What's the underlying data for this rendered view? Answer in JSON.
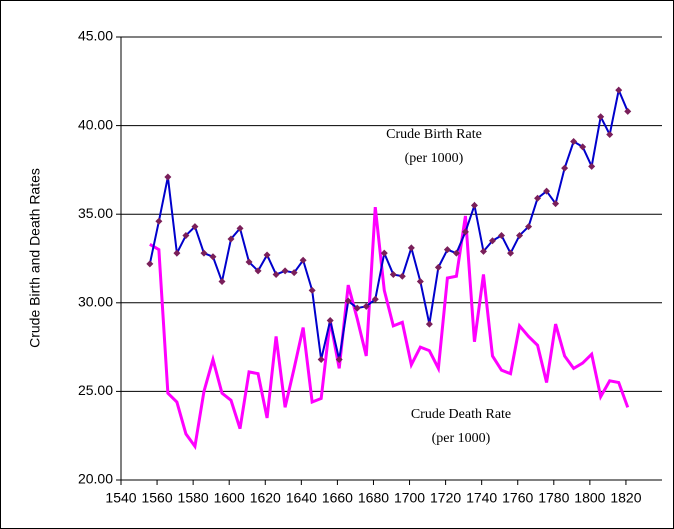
{
  "chart_data": {
    "type": "line",
    "y_label": "Crude Birth and Death Rates",
    "x": [
      1556,
      1561,
      1566,
      1571,
      1576,
      1581,
      1586,
      1591,
      1596,
      1601,
      1606,
      1611,
      1616,
      1621,
      1626,
      1631,
      1636,
      1641,
      1646,
      1651,
      1656,
      1661,
      1666,
      1671,
      1676,
      1681,
      1686,
      1691,
      1696,
      1701,
      1706,
      1711,
      1716,
      1721,
      1726,
      1731,
      1736,
      1741,
      1746,
      1751,
      1756,
      1761,
      1766,
      1771,
      1776,
      1781,
      1786,
      1791,
      1796,
      1801,
      1806,
      1811,
      1816,
      1821
    ],
    "series": [
      {
        "name": "Crude Birth Rate",
        "unit": "(per 1000)",
        "color": "#0000cc",
        "marker_color": "#7a1f5a",
        "markers": true,
        "values": [
          32.2,
          34.6,
          37.1,
          32.8,
          33.8,
          34.3,
          32.8,
          32.6,
          31.2,
          33.6,
          34.2,
          32.3,
          31.8,
          32.7,
          31.6,
          31.8,
          31.7,
          32.4,
          30.7,
          26.8,
          29.0,
          26.8,
          30.1,
          29.7,
          29.8,
          30.2,
          32.8,
          31.6,
          31.5,
          33.1,
          31.2,
          28.8,
          32.0,
          33.0,
          32.8,
          34.0,
          35.5,
          32.9,
          33.5,
          33.8,
          32.8,
          33.8,
          34.3,
          35.9,
          36.3,
          35.6,
          37.6,
          39.1,
          38.8,
          37.7,
          40.5,
          39.5,
          42.0,
          40.8
        ]
      },
      {
        "name": "Crude Death Rate",
        "unit": "(per 1000)",
        "color": "#ff00ff",
        "markers": false,
        "values": [
          33.3,
          33.0,
          24.9,
          24.4,
          22.6,
          21.9,
          25.0,
          26.8,
          24.9,
          24.5,
          22.9,
          26.1,
          26.0,
          23.5,
          28.1,
          24.1,
          26.3,
          28.6,
          24.4,
          24.6,
          29.0,
          26.3,
          31.0,
          29.1,
          27.0,
          35.4,
          30.7,
          28.7,
          28.9,
          26.5,
          27.5,
          27.3,
          26.3,
          31.4,
          31.5,
          34.9,
          27.8,
          31.6,
          27.0,
          26.2,
          26.0,
          28.7,
          28.1,
          27.6,
          25.5,
          28.8,
          27.0,
          26.3,
          26.6,
          27.1,
          24.7,
          25.6,
          25.5,
          24.1
        ]
      }
    ],
    "xlim": [
      1540,
      1840
    ],
    "xticks": [
      1540,
      1560,
      1580,
      1600,
      1620,
      1640,
      1660,
      1680,
      1700,
      1720,
      1740,
      1760,
      1780,
      1800,
      1820
    ],
    "ylim": [
      20,
      45
    ],
    "yticks": [
      {
        "value": 20,
        "label": "20.00"
      },
      {
        "value": 25,
        "label": "25.00"
      },
      {
        "value": 30,
        "label": "30.00"
      },
      {
        "value": 35,
        "label": "35.00"
      },
      {
        "value": 40,
        "label": "40.00"
      },
      {
        "value": 45,
        "label": "45.00"
      }
    ],
    "grid": true
  }
}
